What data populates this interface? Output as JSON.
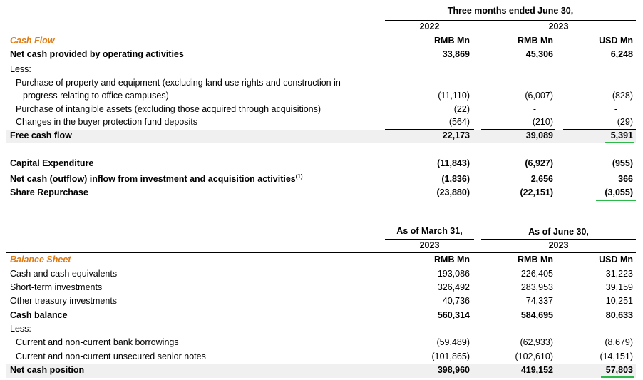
{
  "cashflow": {
    "period_header": "Three months ended June 30,",
    "years": [
      "2022",
      "2023"
    ],
    "units": [
      "RMB Mn",
      "RMB Mn",
      "USD Mn"
    ],
    "section_title": "Cash Flow",
    "net_cash_label": "Net cash provided by operating activities",
    "net_cash": [
      "33,869",
      "45,306",
      "6,248"
    ],
    "less_label": "Less:",
    "ppe_label_1": "Purchase of property and equipment (excluding land use rights and construction in",
    "ppe_label_2": "progress relating to office campuses)",
    "ppe": [
      "(11,110)",
      "(6,007)",
      "(828)"
    ],
    "intangible_label": "Purchase of intangible assets (excluding those acquired through acquisitions)",
    "intangible": [
      "(22)",
      "-",
      "-"
    ],
    "buyer_label": "Changes in the buyer protection fund deposits",
    "buyer": [
      "(564)",
      "(210)",
      "(29)"
    ],
    "fcf_label": "Free cash flow",
    "fcf": [
      "22,173",
      "39,089",
      "5,391"
    ],
    "capex_label": "Capital Expenditure",
    "capex": [
      "(11,843)",
      "(6,927)",
      "(955)"
    ],
    "invest_label": "Net cash (outflow) inflow from investment and acquisition activities",
    "invest_note": "(1)",
    "invest": [
      "(1,836)",
      "2,656",
      "366"
    ],
    "repurchase_label": "Share Repurchase",
    "repurchase": [
      "(23,880)",
      "(22,151)",
      "(3,055)"
    ]
  },
  "balance": {
    "march_header": "As of March 31,",
    "june_header": "As of June 30,",
    "years": [
      "2023",
      "2023"
    ],
    "units": [
      "RMB Mn",
      "RMB Mn",
      "USD Mn"
    ],
    "section_title": "Balance Sheet",
    "cash_label": "Cash and cash equivalents",
    "cash": [
      "193,086",
      "226,405",
      "31,223"
    ],
    "sti_label": "Short-term investments",
    "sti": [
      "326,492",
      "283,953",
      "39,159"
    ],
    "oti_label": "Other treasury investments",
    "oti": [
      "40,736",
      "74,337",
      "10,251"
    ],
    "cash_balance_label": "Cash balance",
    "cash_balance": [
      "560,314",
      "584,695",
      "80,633"
    ],
    "less_label": "Less:",
    "bank_label": "Current and non-current bank borrowings",
    "bank": [
      "(59,489)",
      "(62,933)",
      "(8,679)"
    ],
    "notes_label": "Current and non-current unsecured senior notes",
    "notes": [
      "(101,865)",
      "(102,610)",
      "(14,151)"
    ],
    "net_label": "Net cash position",
    "net": [
      "398,960",
      "419,152",
      "57,803"
    ]
  },
  "colors": {
    "section": "#e07b13",
    "underline": "#2db84a",
    "shade": "#f0f0f0"
  }
}
